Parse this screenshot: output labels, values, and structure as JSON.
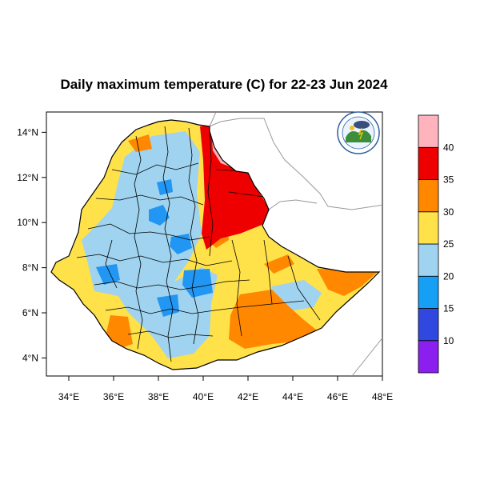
{
  "title": "Daily maximum temperature (C) for 22-23 Jun 2024",
  "map": {
    "lon_range": [
      33,
      48
    ],
    "lat_range": [
      3.2,
      14.9
    ],
    "x_ticks": [
      {
        "value": 34,
        "label": "34°E"
      },
      {
        "value": 36,
        "label": "36°E"
      },
      {
        "value": 38,
        "label": "38°E"
      },
      {
        "value": 40,
        "label": "40°E"
      },
      {
        "value": 42,
        "label": "42°E"
      },
      {
        "value": 44,
        "label": "44°E"
      },
      {
        "value": 46,
        "label": "46°E"
      },
      {
        "value": 48,
        "label": "48°E"
      }
    ],
    "y_ticks": [
      {
        "value": 4,
        "label": "4°N"
      },
      {
        "value": 6,
        "label": "6°N"
      },
      {
        "value": 8,
        "label": "8°N"
      },
      {
        "value": 10,
        "label": "10°N"
      },
      {
        "value": 12,
        "label": "12°N"
      },
      {
        "value": 14,
        "label": "14°N"
      }
    ]
  },
  "legend": {
    "bins": [
      {
        "color": "#8b1ff0",
        "range": [
          5,
          10
        ]
      },
      {
        "color": "#3048e0",
        "range": [
          10,
          15
        ]
      },
      {
        "color": "#15a0f5",
        "range": [
          15,
          20
        ]
      },
      {
        "color": "#9fd3ef",
        "range": [
          20,
          25
        ]
      },
      {
        "color": "#ffe14a",
        "range": [
          25,
          30
        ]
      },
      {
        "color": "#ff8800",
        "range": [
          30,
          35
        ]
      },
      {
        "color": "#ee0000",
        "range": [
          35,
          40
        ]
      },
      {
        "color": "#ffb3bd",
        "range": [
          40,
          45
        ]
      }
    ],
    "labels": [
      "10",
      "15",
      "20",
      "25",
      "30",
      "35",
      "40"
    ]
  },
  "colors": {
    "yellow": "#ffe14a",
    "lightblue": "#9fd3ef",
    "blue": "#2196f3",
    "orange": "#ff8800",
    "red": "#ee0000",
    "pink": "#ffb3bd",
    "border": "#000000",
    "neighbor_border": "#999999"
  },
  "logo": {
    "icon": "ethiopian-meteorology-institute-logo"
  }
}
